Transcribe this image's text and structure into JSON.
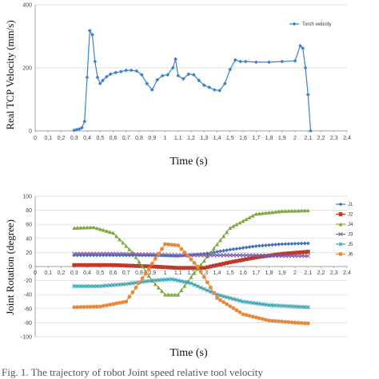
{
  "chart_data": [
    {
      "type": "line",
      "ylabel": "Real TCP Velocity (mm/s)",
      "xlabel": "Time (s)",
      "xlim": [
        0,
        2.4
      ],
      "ylim": [
        0,
        400
      ],
      "x_ticks": [
        "0",
        "0,1",
        "0,2",
        "0,3",
        "0,4",
        "0,5",
        "0,6",
        "0,7",
        "0,8",
        "0,9",
        "1",
        "1,1",
        "1,2",
        "1,3",
        "1,4",
        "1,5",
        "1,6",
        "1,7",
        "1,8",
        "1,9",
        "2",
        "2,1",
        "2,2",
        "2,3",
        "2,4"
      ],
      "y_ticks": [
        "0",
        "200",
        "400"
      ],
      "y_tick_values": [
        0,
        200,
        400
      ],
      "grid": "horizontal",
      "legend_position": "top-right",
      "series": [
        {
          "name": "Torch velocity",
          "color": "#3f7fc8",
          "marker": "diamond",
          "x": [
            0.3,
            0.32,
            0.34,
            0.36,
            0.38,
            0.4,
            0.42,
            0.44,
            0.46,
            0.48,
            0.5,
            0.52,
            0.55,
            0.58,
            0.62,
            0.66,
            0.7,
            0.74,
            0.78,
            0.82,
            0.86,
            0.9,
            0.94,
            0.98,
            1.02,
            1.06,
            1.08,
            1.1,
            1.14,
            1.18,
            1.22,
            1.26,
            1.3,
            1.34,
            1.38,
            1.42,
            1.46,
            1.5,
            1.54,
            1.58,
            1.62,
            1.7,
            1.8,
            1.9,
            2.0,
            2.04,
            2.06,
            2.08,
            2.1,
            2.12
          ],
          "y": [
            2,
            4,
            6,
            10,
            30,
            170,
            318,
            305,
            220,
            170,
            150,
            160,
            172,
            180,
            185,
            188,
            192,
            192,
            190,
            178,
            150,
            130,
            162,
            175,
            178,
            200,
            228,
            175,
            165,
            180,
            178,
            160,
            145,
            138,
            130,
            128,
            150,
            195,
            225,
            220,
            220,
            218,
            218,
            220,
            222,
            270,
            262,
            200,
            115,
            0
          ]
        }
      ]
    },
    {
      "type": "line",
      "ylabel": "Joint Rotation (degree)",
      "xlabel": "Time (s)",
      "xlim": [
        0,
        2.4
      ],
      "ylim": [
        -100,
        100
      ],
      "x_ticks": [
        "0",
        "0,1",
        "0,2",
        "0,3",
        "0,4",
        "0,5",
        "0,6",
        "0,7",
        "0,8",
        "0,9",
        "1",
        "1,1",
        "1,2",
        "1,3",
        "1,4",
        "1,5",
        "1,6",
        "1,7",
        "1,8",
        "1,9",
        "2",
        "2,1",
        "2,2",
        "2,3",
        "2,4"
      ],
      "y_ticks": [
        "-100",
        "-80",
        "-60",
        "-40",
        "-20",
        "0",
        "20",
        "40",
        "60",
        "80",
        "100"
      ],
      "y_tick_values": [
        -100,
        -80,
        -60,
        -40,
        -20,
        0,
        20,
        40,
        60,
        80,
        100
      ],
      "grid": "horizontal",
      "legend_position": "right",
      "series": [
        {
          "name": "J1",
          "color": "#3f6fbf",
          "marker": "diamond",
          "x": [
            0.3,
            0.6,
            0.9,
            1.1,
            1.3,
            1.5,
            1.7,
            1.9,
            2.1
          ],
          "y": [
            16,
            16,
            16,
            15,
            18,
            24,
            29,
            32,
            33
          ]
        },
        {
          "name": "J2",
          "color": "#c0392b",
          "marker": "square",
          "x": [
            0.3,
            0.6,
            0.9,
            1.1,
            1.3,
            1.5,
            1.7,
            1.9,
            2.1
          ],
          "y": [
            2,
            2,
            0,
            -2,
            -2,
            6,
            13,
            18,
            21
          ]
        },
        {
          "name": "J4",
          "color": "#7aa93a",
          "marker": "triangle",
          "x": [
            0.3,
            0.45,
            0.6,
            0.75,
            0.9,
            1.0,
            1.1,
            1.2,
            1.35,
            1.5,
            1.7,
            1.9,
            2.1
          ],
          "y": [
            55,
            56,
            48,
            20,
            -20,
            -40,
            -40,
            -15,
            20,
            55,
            75,
            79,
            80
          ]
        },
        {
          "name": "J3",
          "color": "#7b5aa6",
          "marker": "x",
          "x": [
            0.3,
            0.6,
            0.9,
            1.1,
            1.3,
            1.5,
            1.7,
            1.9,
            2.1
          ],
          "y": [
            18,
            18,
            17,
            16,
            16,
            16,
            16,
            15,
            15
          ]
        },
        {
          "name": "J5",
          "color": "#3fa3b6",
          "marker": "star",
          "x": [
            0.3,
            0.5,
            0.7,
            0.9,
            1.05,
            1.2,
            1.4,
            1.6,
            1.8,
            2.0,
            2.1
          ],
          "y": [
            -28,
            -28,
            -25,
            -20,
            -18,
            -24,
            -40,
            -50,
            -55,
            -57,
            -58
          ]
        },
        {
          "name": "J6",
          "color": "#e8883a",
          "marker": "circle",
          "x": [
            0.3,
            0.5,
            0.7,
            0.85,
            1.0,
            1.1,
            1.25,
            1.4,
            1.6,
            1.8,
            2.0,
            2.1
          ],
          "y": [
            -58,
            -57,
            -50,
            -10,
            32,
            30,
            0,
            -45,
            -68,
            -77,
            -80,
            -81
          ]
        }
      ]
    }
  ],
  "caption": "Fig. 1. The trajectory of robot Joint speed relative tool velocity"
}
